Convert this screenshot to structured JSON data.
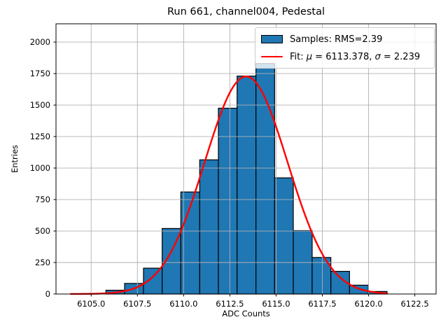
{
  "chart_data": {
    "type": "bar",
    "subtype": "histogram-with-gaussian-fit",
    "title": "Run 661, channel004, Pedestal",
    "xlabel": "ADC Counts",
    "ylabel": "Entries",
    "bin_edges": [
      6105.8,
      6106.81,
      6107.83,
      6108.84,
      6109.85,
      6110.87,
      6111.88,
      6112.89,
      6113.91,
      6114.92,
      6115.93,
      6116.95,
      6117.96,
      6118.97,
      6119.99,
      6121.0
    ],
    "counts": [
      30,
      84,
      205,
      520,
      810,
      1065,
      1475,
      1730,
      1830,
      922,
      503,
      290,
      180,
      70,
      20
    ],
    "x_ticks": [
      6105.0,
      6107.5,
      6110.0,
      6112.5,
      6115.0,
      6117.5,
      6120.0,
      6122.5
    ],
    "x_tick_labels": [
      "6105.0",
      "6107.5",
      "6110.0",
      "6112.5",
      "6115.0",
      "6117.5",
      "6120.0",
      "6122.5"
    ],
    "y_ticks": [
      0,
      250,
      500,
      750,
      1000,
      1250,
      1500,
      1750,
      2000
    ],
    "y_tick_labels": [
      "0",
      "250",
      "500",
      "750",
      "1000",
      "1250",
      "1500",
      "1750",
      "2000"
    ],
    "xlim": [
      6103.1,
      6123.65
    ],
    "ylim": [
      0,
      2145
    ],
    "grid": true,
    "grid_above_bars": true,
    "legend_position": "upper right",
    "fit": {
      "type": "gaussian",
      "mu": 6113.378,
      "sigma": 2.239,
      "amplitude": 1727,
      "x_start": 6103.9,
      "x_end": 6121.05
    },
    "legend": {
      "samples_label": "Samples: RMS=2.39",
      "fit_prefix": "Fit: ",
      "mu_symbol": "μ",
      "mu_value": " = 6113.378, ",
      "sigma_symbol": "σ",
      "sigma_value": " = 2.239"
    },
    "colors": {
      "bar_fill": "#1f77b4",
      "bar_edge": "#000000",
      "fit_line": "#ff0000",
      "grid": "#b0b0b0",
      "spine": "#000000",
      "background": "#ffffff"
    }
  }
}
